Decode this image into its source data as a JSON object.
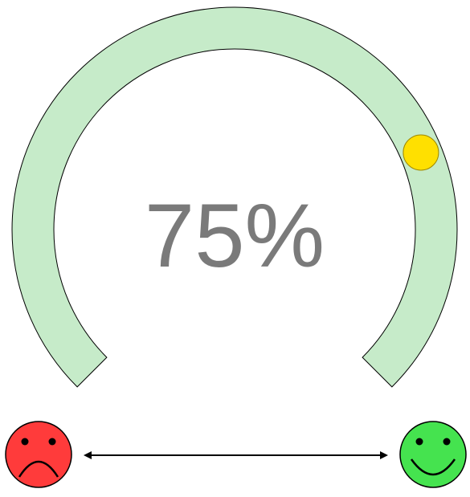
{
  "gauge": {
    "value": 75,
    "label": "75%"
  },
  "colors": {
    "track": "#c6ebc9",
    "knob": "#ffe000",
    "text": "#7a7a7a",
    "sad_face": "#ff3b3b",
    "happy_face": "#45e34f",
    "outline": "#000000"
  },
  "icons": {
    "left": "sad-face-icon",
    "right": "happy-face-icon",
    "connector": "double-arrow-icon"
  }
}
